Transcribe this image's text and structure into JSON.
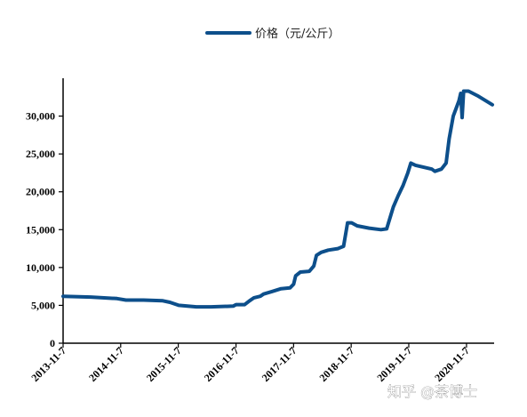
{
  "legend": {
    "label": "价格（元/公斤）"
  },
  "watermark": {
    "text": "知乎 @茶博士"
  },
  "colors": {
    "line": "#0d4f8b",
    "axis": "#000000"
  },
  "chart_data": {
    "type": "line",
    "x_type": "date",
    "x_tick_labels": [
      "2013-11-7",
      "2014-11-7",
      "2015-11-7",
      "2016-11-7",
      "2017-11-7",
      "2018-11-7",
      "2019-11-7",
      "2020-11-7"
    ],
    "xlim": [
      "2013-11-07",
      "2021-05-01"
    ],
    "ylim": [
      0,
      35000
    ],
    "y_ticks": [
      0,
      5000,
      10000,
      15000,
      20000,
      25000,
      30000
    ],
    "y_tick_labels": [
      "0",
      "5,000",
      "10,000",
      "15,000",
      "20,000",
      "25,000",
      "30,000"
    ],
    "grid": false,
    "legend_position": "top-center",
    "series": [
      {
        "name": "价格（元/公斤）",
        "color": "#0d4f8b",
        "points": [
          [
            "2013-11-07",
            6200
          ],
          [
            "2014-05-01",
            6100
          ],
          [
            "2014-10-15",
            5900
          ],
          [
            "2014-12-10",
            5700
          ],
          [
            "2015-04-01",
            5700
          ],
          [
            "2015-08-01",
            5600
          ],
          [
            "2015-09-15",
            5400
          ],
          [
            "2015-11-10",
            5000
          ],
          [
            "2016-03-01",
            4800
          ],
          [
            "2016-06-01",
            4800
          ],
          [
            "2016-10-20",
            4900
          ],
          [
            "2016-11-07",
            5100
          ],
          [
            "2017-01-01",
            5100
          ],
          [
            "2017-02-01",
            5600
          ],
          [
            "2017-03-01",
            6000
          ],
          [
            "2017-04-10",
            6200
          ],
          [
            "2017-05-01",
            6500
          ],
          [
            "2017-06-20",
            6800
          ],
          [
            "2017-08-20",
            7200
          ],
          [
            "2017-10-15",
            7300
          ],
          [
            "2017-11-07",
            7800
          ],
          [
            "2017-11-20",
            8900
          ],
          [
            "2017-12-20",
            9400
          ],
          [
            "2018-02-15",
            9500
          ],
          [
            "2018-03-15",
            10200
          ],
          [
            "2018-04-01",
            11600
          ],
          [
            "2018-05-01",
            12000
          ],
          [
            "2018-06-15",
            12300
          ],
          [
            "2018-08-15",
            12500
          ],
          [
            "2018-09-20",
            12800
          ],
          [
            "2018-10-15",
            15900
          ],
          [
            "2018-11-10",
            15900
          ],
          [
            "2018-12-15",
            15500
          ],
          [
            "2019-03-01",
            15200
          ],
          [
            "2019-05-15",
            15000
          ],
          [
            "2019-06-20",
            15100
          ],
          [
            "2019-07-10",
            16500
          ],
          [
            "2019-08-01",
            18000
          ],
          [
            "2019-09-01",
            19500
          ],
          [
            "2019-10-01",
            20800
          ],
          [
            "2019-11-01",
            22500
          ],
          [
            "2019-11-20",
            23800
          ],
          [
            "2019-12-20",
            23500
          ],
          [
            "2020-04-01",
            23000
          ],
          [
            "2020-04-20",
            22700
          ],
          [
            "2020-06-01",
            23000
          ],
          [
            "2020-07-01",
            23800
          ],
          [
            "2020-07-20",
            27000
          ],
          [
            "2020-08-15",
            30000
          ],
          [
            "2020-09-20",
            32000
          ],
          [
            "2020-10-01",
            33000
          ],
          [
            "2020-10-10",
            29800
          ],
          [
            "2020-10-20",
            33300
          ],
          [
            "2020-11-20",
            33300
          ],
          [
            "2021-01-15",
            32700
          ],
          [
            "2021-04-20",
            31500
          ]
        ]
      }
    ]
  }
}
